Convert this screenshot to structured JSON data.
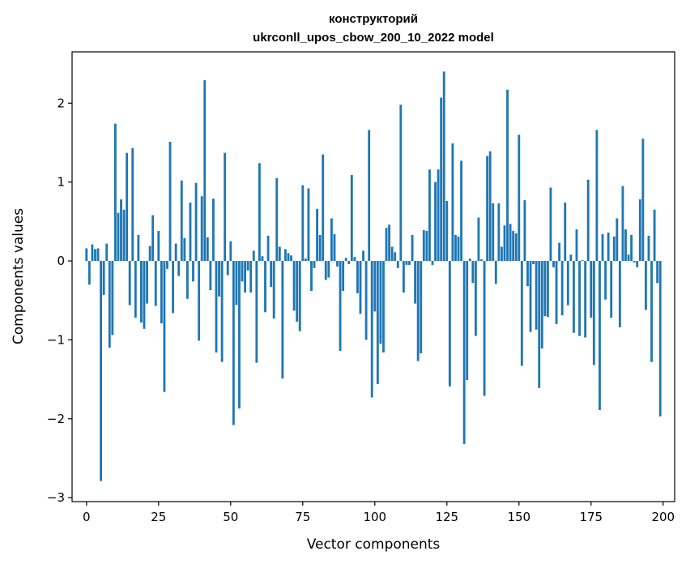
{
  "chart_data": {
    "type": "bar",
    "title": "конструкторий",
    "subtitle": "ukrconll_upos_cbow_200_10_2022 model",
    "xlabel": "Vector components",
    "ylabel": "Components values",
    "xlim": [
      -5,
      204
    ],
    "ylim": [
      -3.05,
      2.65
    ],
    "xticks": [
      0,
      25,
      50,
      75,
      100,
      125,
      150,
      175,
      200
    ],
    "yticks": [
      -3,
      -2,
      -1,
      0,
      1,
      2
    ],
    "ytick_labels": [
      "−3",
      "−2",
      "−1",
      "0",
      "1",
      "2"
    ],
    "grid": false,
    "bar_color": "#1f77b4",
    "values": [
      0.16,
      -0.3,
      0.21,
      0.15,
      0.16,
      -2.79,
      -0.43,
      0.22,
      -1.1,
      -0.94,
      1.74,
      0.61,
      0.78,
      0.65,
      1.37,
      -0.56,
      1.43,
      -0.72,
      0.33,
      -0.78,
      -0.86,
      -0.54,
      0.19,
      0.58,
      -0.57,
      0.38,
      -0.79,
      -1.66,
      -0.1,
      1.51,
      -0.66,
      0.22,
      -0.19,
      1.02,
      0.29,
      -0.48,
      0.74,
      -0.26,
      0.99,
      -1.01,
      0.82,
      2.29,
      0.3,
      -0.37,
      0.79,
      -1.16,
      -0.45,
      -1.28,
      1.37,
      -0.18,
      0.25,
      -2.08,
      -0.56,
      -1.87,
      -0.26,
      -0.4,
      -0.12,
      -0.4,
      0.13,
      -1.29,
      1.24,
      0.06,
      -0.65,
      0.32,
      -0.33,
      -0.73,
      1.05,
      0.18,
      -1.49,
      0.15,
      0.1,
      0.07,
      -0.63,
      -0.77,
      -0.89,
      0.96,
      0.03,
      0.92,
      -0.38,
      -0.09,
      0.66,
      0.33,
      1.35,
      -0.24,
      -0.21,
      0.54,
      0.34,
      -0.07,
      -1.14,
      -0.38,
      0.04,
      -0.04,
      1.09,
      0.05,
      -0.41,
      -0.67,
      0.13,
      -1.0,
      1.66,
      -1.73,
      -0.64,
      -1.56,
      -1.05,
      -1.16,
      0.42,
      0.46,
      0.18,
      0.11,
      -0.09,
      1.98,
      -0.4,
      -0.05,
      -0.05,
      0.33,
      -0.54,
      -1.27,
      -1.17,
      0.39,
      0.38,
      1.16,
      -0.05,
      1.0,
      1.16,
      2.07,
      2.4,
      0.76,
      -1.59,
      1.49,
      0.33,
      0.31,
      1.27,
      -2.32,
      -1.51,
      0.03,
      -0.28,
      -0.95,
      0.55,
      0.02,
      -1.71,
      1.33,
      1.39,
      0.73,
      -0.29,
      0.73,
      0.18,
      0.45,
      2.17,
      0.47,
      0.38,
      0.35,
      1.6,
      -1.33,
      0.77,
      -0.32,
      -0.9,
      -0.04,
      -0.87,
      -1.61,
      -1.11,
      -0.7,
      -0.71,
      0.93,
      -0.08,
      -0.8,
      0.23,
      -0.69,
      0.74,
      -0.56,
      0.08,
      -0.91,
      0.4,
      -0.95,
      0.01,
      -0.97,
      1.03,
      -0.72,
      -1.32,
      1.66,
      -1.89,
      0.34,
      -0.49,
      0.36,
      -0.72,
      0.31,
      0.54,
      -0.84,
      0.95,
      0.4,
      0.08,
      0.33,
      -0.02,
      -0.08,
      0.78,
      1.55,
      -0.62,
      0.32,
      -1.28,
      0.65,
      -0.28,
      -1.97
    ]
  }
}
